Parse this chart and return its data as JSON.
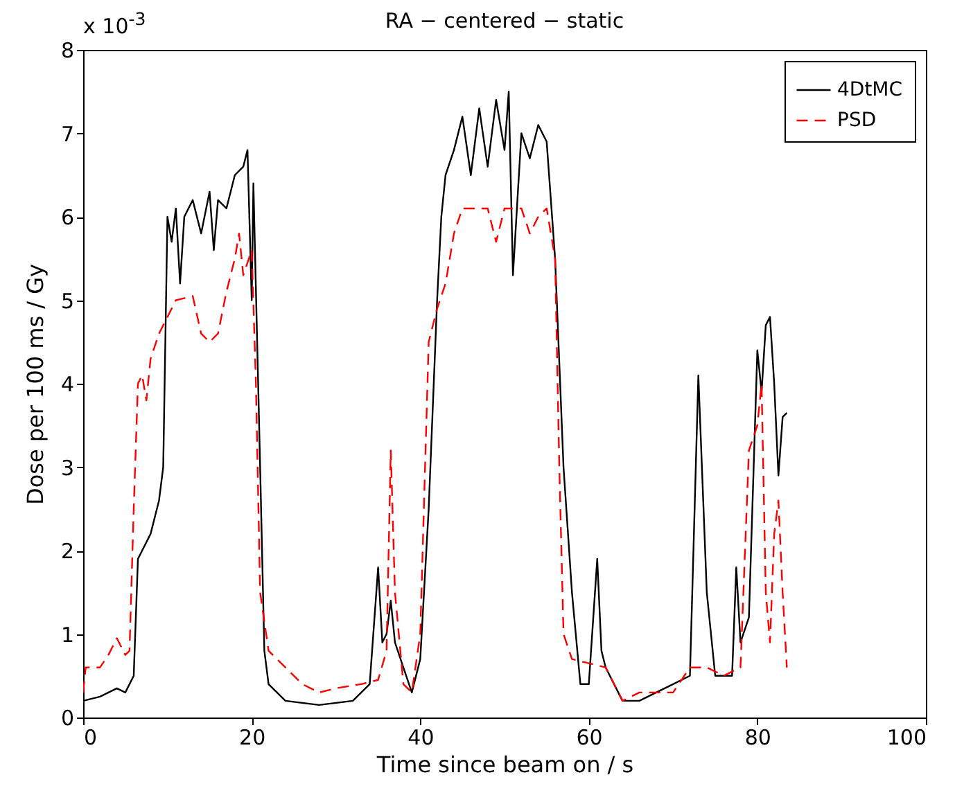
{
  "chart_data": {
    "type": "line",
    "title": "RA − centered − static",
    "xlabel": "Time since beam on / s",
    "ylabel": "Dose per 100 ms / Gy",
    "annotations": [
      "x 10$^{-3}$"
    ],
    "xlim": [
      0,
      100
    ],
    "xticks": [
      0,
      20,
      40,
      60,
      80,
      100
    ],
    "ylim": [
      0,
      8
    ],
    "yticks": [
      0,
      1,
      2,
      3,
      4,
      5,
      6,
      7,
      8
    ],
    "grid": false,
    "legend": "top right",
    "marker": "none",
    "series": [
      {
        "name": "4DtMC",
        "color": "#000000",
        "line_style": "solid",
        "x": [
          0,
          2,
          4,
          5,
          6,
          6.5,
          7,
          8,
          9,
          9.5,
          10,
          10.5,
          11,
          11.5,
          12,
          13,
          14,
          15,
          15.5,
          16,
          17,
          18,
          19,
          19.5,
          20,
          20.2,
          21,
          21.5,
          22,
          24,
          28,
          32,
          34,
          35,
          35.5,
          36,
          36.5,
          37,
          39,
          40,
          41,
          42,
          42.5,
          43,
          44,
          45,
          46,
          47,
          48,
          49,
          50,
          50.5,
          51,
          52,
          53,
          54,
          55,
          56,
          57,
          58,
          59,
          60,
          61,
          61.5,
          62,
          64,
          66,
          70,
          72,
          73,
          74,
          75,
          77,
          77.5,
          78,
          79,
          80,
          80.5,
          81,
          81.5,
          82,
          82.5,
          83,
          83.5
        ],
        "values": [
          0.2,
          0.25,
          0.35,
          0.3,
          0.5,
          1.9,
          2.0,
          2.2,
          2.6,
          3.0,
          6.0,
          5.7,
          6.1,
          5.2,
          6.0,
          6.2,
          5.8,
          6.3,
          5.6,
          6.2,
          6.1,
          6.5,
          6.6,
          6.8,
          5.0,
          6.4,
          3.0,
          0.8,
          0.4,
          0.2,
          0.15,
          0.2,
          0.4,
          1.8,
          0.9,
          1.0,
          1.4,
          0.9,
          0.3,
          0.7,
          2.5,
          5.0,
          6.0,
          6.5,
          6.8,
          7.2,
          6.5,
          7.3,
          6.6,
          7.4,
          6.8,
          7.5,
          5.3,
          7.0,
          6.7,
          7.1,
          6.9,
          5.5,
          3.0,
          1.5,
          0.4,
          0.4,
          1.9,
          0.8,
          0.6,
          0.2,
          0.2,
          0.4,
          0.5,
          4.1,
          1.5,
          0.5,
          0.5,
          1.8,
          0.9,
          1.2,
          4.4,
          3.9,
          4.7,
          4.8,
          4.0,
          2.9,
          3.6,
          3.65
        ]
      },
      {
        "name": "PSD",
        "color": "#ff0000",
        "line_style": "dashed",
        "x": [
          0,
          0.3,
          2,
          3,
          4,
          5,
          5.5,
          6,
          6.5,
          7,
          7.5,
          8,
          9,
          10,
          11,
          13,
          14,
          15,
          16,
          17,
          18,
          18.5,
          19,
          20,
          20.5,
          21,
          22,
          24,
          26,
          28,
          30,
          33,
          35,
          36,
          36.5,
          37,
          38,
          39,
          40,
          41,
          42,
          43,
          44,
          45,
          48,
          49,
          50,
          52,
          53,
          54,
          55,
          56,
          56.5,
          57,
          58,
          62,
          64,
          66,
          70,
          72,
          74,
          76,
          78,
          79,
          80,
          80.5,
          81,
          81.5,
          82,
          82.5,
          83,
          83.5
        ],
        "values": [
          0.3,
          0.6,
          0.6,
          0.75,
          0.95,
          0.75,
          0.8,
          2.5,
          4.0,
          4.1,
          3.8,
          4.3,
          4.6,
          4.8,
          5.0,
          5.05,
          4.6,
          4.5,
          4.6,
          5.1,
          5.5,
          5.8,
          5.3,
          5.6,
          4.0,
          1.5,
          0.8,
          0.6,
          0.4,
          0.3,
          0.35,
          0.4,
          0.45,
          0.8,
          3.2,
          1.5,
          0.4,
          0.3,
          1.0,
          4.5,
          4.9,
          5.2,
          5.8,
          6.1,
          6.1,
          5.7,
          6.1,
          6.1,
          5.8,
          6.0,
          6.1,
          5.5,
          3.0,
          1.0,
          0.7,
          0.6,
          0.2,
          0.3,
          0.3,
          0.6,
          0.6,
          0.5,
          0.6,
          3.2,
          3.5,
          4.0,
          1.5,
          0.9,
          2.2,
          2.6,
          1.5,
          0.6
        ]
      }
    ]
  }
}
